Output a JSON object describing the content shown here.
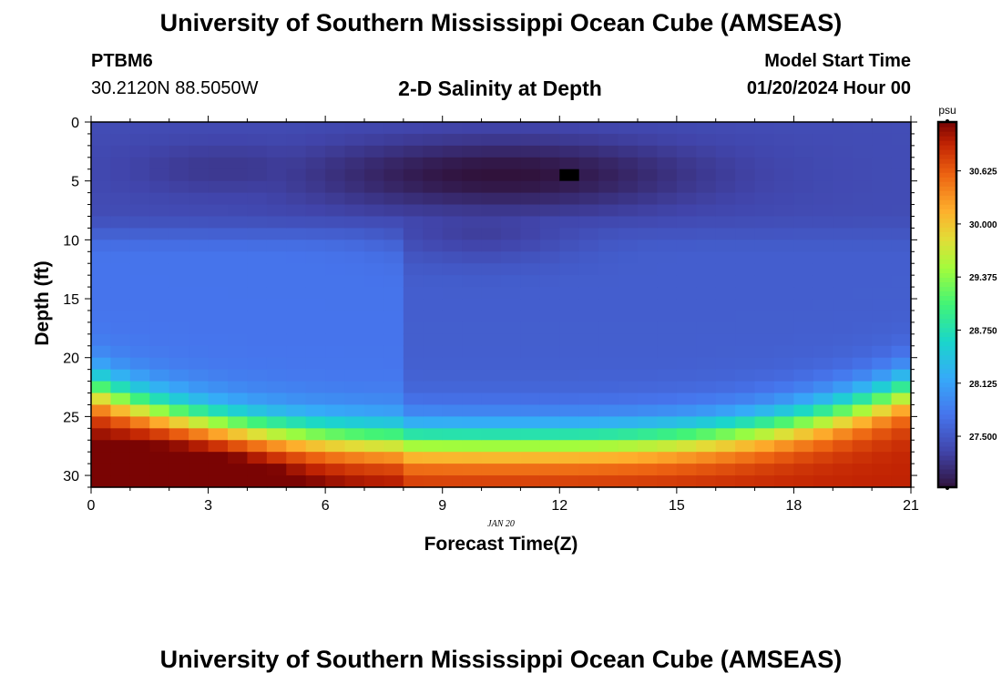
{
  "header": {
    "title": "University of Southern Mississippi Ocean Cube (AMSEAS)",
    "station_id": "PTBM6",
    "coordinates": "30.2120N  88.5050W",
    "subtitle": "2-D Salinity at Depth",
    "model_start_label": "Model Start Time",
    "model_start_value": "01/20/2024 Hour 00"
  },
  "footer": {
    "title": "University of Southern Mississippi Ocean Cube (AMSEAS)"
  },
  "chart_data": {
    "type": "heatmap",
    "title": "2-D Salinity at Depth",
    "xlabel": "Forecast Time(Z)",
    "ylabel": "Depth (ft)",
    "date_label": "JAN 20",
    "xlim": [
      0,
      21
    ],
    "ylim": [
      0,
      31
    ],
    "x_ticks": [
      0,
      3,
      6,
      9,
      12,
      15,
      18,
      21
    ],
    "y_ticks": [
      0,
      5,
      10,
      15,
      20,
      25,
      30
    ],
    "colorbar": {
      "unit": "psu",
      "min": 26.9,
      "max": 31.2,
      "ticks": [
        "27.500",
        "28.125",
        "28.750",
        "29.375",
        "30.000",
        "30.625"
      ],
      "tick_values": [
        27.5,
        28.125,
        28.75,
        29.375,
        30.0,
        30.625
      ]
    },
    "missing_cell": {
      "time": 12,
      "depth": 4
    },
    "grid": {
      "x_step_hours": 0.5,
      "y_step_ft": 1
    }
  }
}
